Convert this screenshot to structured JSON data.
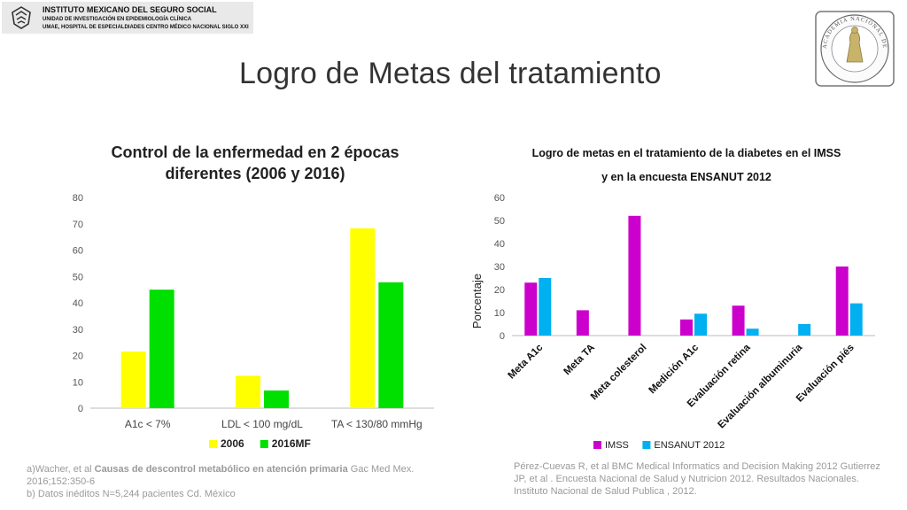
{
  "header": {
    "institution": "INSTITUTO MEXICANO DEL SEGURO SOCIAL",
    "unit": "UNIDAD DE INVESTIGACIÓN EN EPIDEMIOLOGÍA CLÍNICA",
    "hospital": "UMAE, HOSPITAL DE ESPECIALDIADES CENTRO MÉDICO NACIONAL SIGLO XXI",
    "seal_text": "ACADEMIA NACIONAL DE MEDICINA · MÉXICO"
  },
  "slide": {
    "title": "Logro de Metas del tratamiento"
  },
  "chart_data": [
    {
      "type": "bar",
      "title": "Control de la enfermedad en 2 épocas diferentes (2006 y 2016)",
      "categories": [
        "A1c < 7%",
        "LDL < 100 mg/dL",
        "TA < 130/80 mmHg"
      ],
      "series": [
        {
          "name": "2006",
          "values": [
            21.5,
            12.3,
            68.3
          ],
          "color": "#ffff00"
        },
        {
          "name": "2016MF",
          "values": [
            45,
            6.7,
            47.8
          ],
          "color": "#00e000"
        }
      ],
      "ylim": [
        0,
        80
      ],
      "yticks": [
        "0",
        "10",
        "20",
        "30",
        "40",
        "50",
        "60",
        "70",
        "80"
      ],
      "grid": false,
      "legend": "bottom"
    },
    {
      "type": "bar",
      "title_line1": "Logro de metas en el tratamiento de la diabetes en el IMSS",
      "title_line2": "y en la encuesta ENSANUT 2012",
      "ylabel": "Porcentaje",
      "categories": [
        "Meta A1c",
        "Meta TA",
        "Meta colesterol",
        "Medición A1c",
        "Evaluación retina",
        "Evaluación albuminuria",
        "Evaluación piés"
      ],
      "series": [
        {
          "name": "IMSS",
          "values": [
            23,
            11,
            52,
            7,
            13,
            0,
            30
          ],
          "color": "#cc00cc"
        },
        {
          "name": "ENSANUT 2012",
          "values": [
            25,
            0,
            0,
            9.5,
            3,
            5,
            14
          ],
          "color": "#00b0f0"
        }
      ],
      "ylim": [
        0,
        60
      ],
      "yticks": [
        "0",
        "10",
        "20",
        "30",
        "40",
        "50",
        "60"
      ],
      "grid": false,
      "legend": "bottom"
    }
  ],
  "references": {
    "left_a_prefix": "a)Wacher, et al ",
    "left_a_bold": "Causas de descontrol metabólico en atención primaria",
    "left_a_suffix": " Gac Med Mex. 2016;152:350-6",
    "left_b": "b) Datos inéditos N=5,244 pacientes Cd. México",
    "right": "Pérez-Cuevas R, et al BMC Medical Informatics and Decision Making 2012 Gutierrez JP, et al . Encuesta Nacional de Salud y Nutricion 2012. Resultados Nacionales. Instituto Nacional de Salud Publica , 2012."
  }
}
